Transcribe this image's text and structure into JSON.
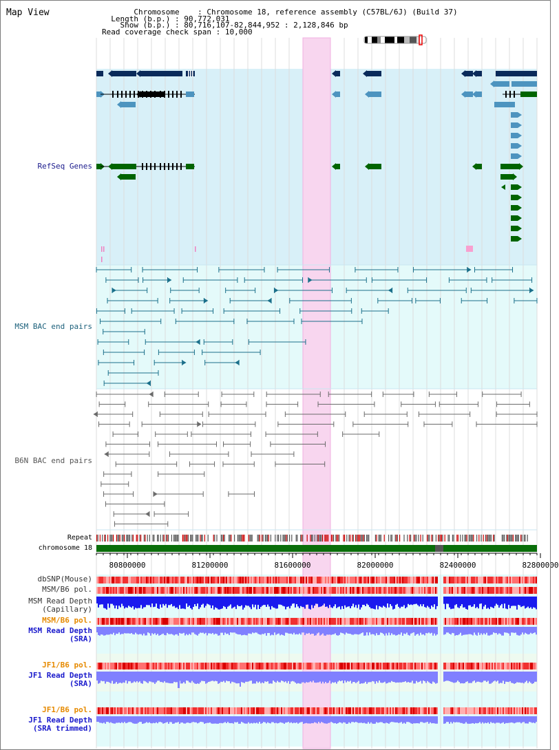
{
  "page": {
    "title": "Map View"
  },
  "header": {
    "chromosome_label": "Chromosome",
    "chromosome_value": "Chromosome 18, reference assembly (C57BL/6J) (Build 37)",
    "length_label": "Length (b.p.)",
    "length_value": "90,772,031",
    "show_label": "Show (b.p.)",
    "show_value": "80,716,107-82,844,952 : 2,128,846 bp",
    "coverage_label": "Read coverage check span",
    "coverage_value": "10,000"
  },
  "tracks": {
    "refseq": "RefSeq Genes",
    "msm_bac": "MSM BAC end pairs",
    "b6n_bac": "B6N BAC end pairs",
    "repeat": "Repeat",
    "chromosome": "chromosome 18",
    "dbsnp": "dbSNP(Mouse)",
    "msm_b6_pol_1": "MSM/B6 pol.",
    "msm_depth_cap_1": "MSM Read Depth",
    "msm_depth_cap_2": "(Capillary)",
    "msm_b6_pol_2": "MSM/B6 pol.",
    "msm_depth_sra_1": "MSM Read Depth",
    "msm_depth_sra_2": "(SRA)",
    "jf1_b6_pol_1": "JF1/B6 pol.",
    "jf1_depth_sra_1": "JF1 Read Depth",
    "jf1_depth_sra_2": "(SRA)",
    "jf1_b6_pol_2": "JF1/B6 pol.",
    "jf1_depth_trim_1": "JF1 Read Depth",
    "jf1_depth_trim_2": "(SRA trimmed)"
  },
  "ruler": {
    "ticks": [
      "80800000",
      "81200000",
      "81600000",
      "82000000",
      "82400000",
      "82800000"
    ]
  },
  "colors": {
    "refseq_bg": "#d8f0f8",
    "bac_bg": "#e4fafa",
    "highlight": "#f8d6ef",
    "gene_navy": "#0a2a5a",
    "gene_blue": "#4d94bf",
    "gene_green": "#006400",
    "chromosome_bar": "#0a6e0a",
    "depth_blue": "#1a1aee",
    "depth_lavender": "#8080ff"
  }
}
